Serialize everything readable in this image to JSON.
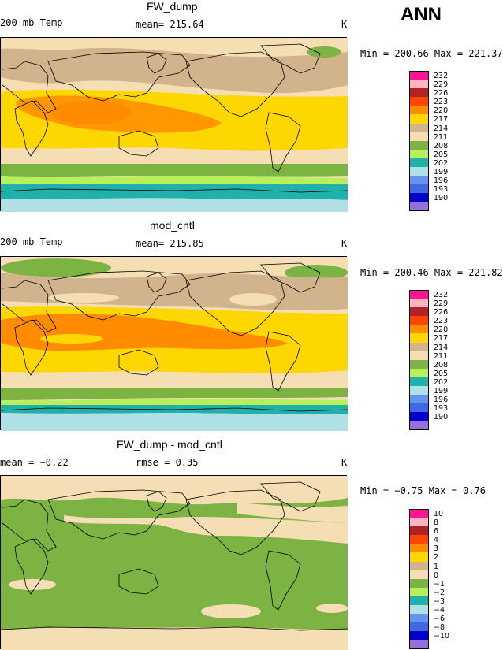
{
  "season": "ANN",
  "palette": {
    "c10": "#ff1493",
    "c9": "#ffb6c1",
    "c8": "#b22222",
    "c7": "#ff4500",
    "c6": "#ff8c00",
    "c5": "#ffd700",
    "c4": "#d2b48c",
    "c3": "#f5deb3",
    "c2": "#7cb342",
    "c1": "#b7f05a",
    "m1": "#20b2aa",
    "m2": "#b0e0e6",
    "m3": "#6495ed",
    "m4": "#4169e1",
    "m5": "#0000cd",
    "m6": "#9370db",
    "land_line": "#000000"
  },
  "panels": [
    {
      "title": "FW_dump",
      "left_label": "200 mb Temp",
      "stat_label": "mean= 215.64",
      "unit": "K",
      "min_label": "Min = 200.66  Max = 221.37",
      "legend": [
        "232",
        "229",
        "226",
        "223",
        "220",
        "217",
        "214",
        "211",
        "208",
        "205",
        "202",
        "199",
        "196",
        "193",
        "190"
      ]
    },
    {
      "title": "mod_cntl",
      "left_label": "200 mb Temp",
      "stat_label": "mean= 215.85",
      "unit": "K",
      "min_label": "Min = 200.46  Max = 221.82",
      "legend": [
        "232",
        "229",
        "226",
        "223",
        "220",
        "217",
        "214",
        "211",
        "208",
        "205",
        "202",
        "199",
        "196",
        "193",
        "190"
      ]
    },
    {
      "title": "FW_dump - mod_cntl",
      "left_label": "mean =   −0.22",
      "stat_label": "rmse =    0.35",
      "unit": "K",
      "min_label": "Min =   −0.75  Max =    0.76",
      "legend": [
        "10",
        "8",
        "6",
        "4",
        "3",
        "2",
        "1",
        "0",
        "−1",
        "−2",
        "−3",
        "−4",
        "−6",
        "−8",
        "−10"
      ]
    }
  ]
}
